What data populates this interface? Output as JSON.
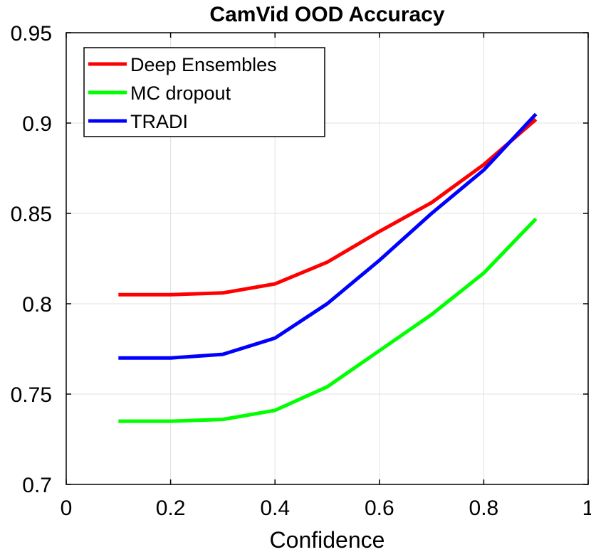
{
  "chart_data": {
    "type": "line",
    "title": "CamVid OOD Accuracy",
    "xlabel": "Confidence",
    "ylabel": "",
    "xlim": [
      0,
      1
    ],
    "ylim": [
      0.7,
      0.95
    ],
    "grid": true,
    "legend_position": "top-left",
    "x_ticks": [
      0,
      0.2,
      0.4,
      0.6,
      0.8,
      1
    ],
    "x_tick_labels": [
      "0",
      "0.2",
      "0.4",
      "0.6",
      "0.8",
      "1"
    ],
    "y_ticks": [
      0.7,
      0.75,
      0.8,
      0.85,
      0.9,
      0.95
    ],
    "y_tick_labels": [
      "0.7",
      "0.75",
      "0.8",
      "0.85",
      "0.9",
      "0.95"
    ],
    "x": [
      0.1,
      0.2,
      0.3,
      0.4,
      0.5,
      0.6,
      0.7,
      0.8,
      0.9
    ],
    "series": [
      {
        "name": "Deep Ensembles",
        "color": "#ff0000",
        "values": [
          0.805,
          0.805,
          0.806,
          0.811,
          0.823,
          0.84,
          0.856,
          0.877,
          0.902
        ]
      },
      {
        "name": "MC dropout",
        "color": "#00ff00",
        "values": [
          0.735,
          0.735,
          0.736,
          0.741,
          0.754,
          0.774,
          0.794,
          0.817,
          0.847
        ]
      },
      {
        "name": "TRADI",
        "color": "#0000ff",
        "values": [
          0.77,
          0.77,
          0.772,
          0.781,
          0.8,
          0.824,
          0.85,
          0.874,
          0.905
        ]
      }
    ]
  }
}
